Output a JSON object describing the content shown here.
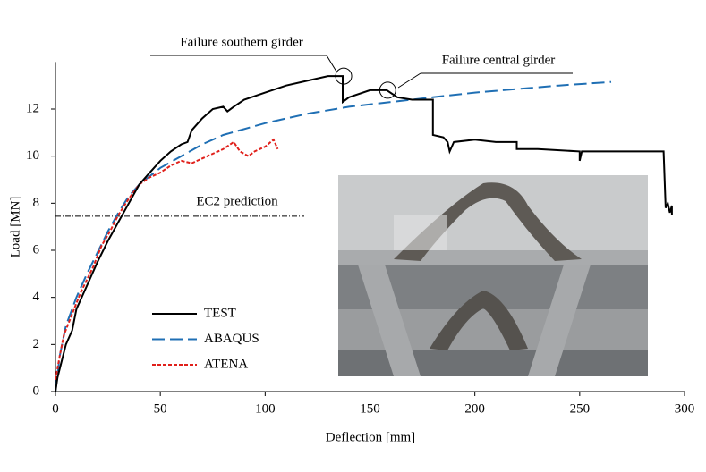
{
  "chart_data": {
    "type": "line",
    "x_label": "Deflection [mm]",
    "y_label": "Load [MN]",
    "xlim": [
      0,
      300
    ],
    "xticks": [
      0,
      50,
      100,
      150,
      200,
      250,
      300
    ],
    "ylim": [
      0,
      14
    ],
    "yticks": [
      0,
      2,
      4,
      6,
      8,
      10,
      12
    ],
    "legend": "lower left",
    "series": [
      {
        "name": "TEST",
        "color": "#000000",
        "style": "solid",
        "x": [
          0,
          1,
          3,
          5,
          8,
          10,
          15,
          20,
          25,
          30,
          35,
          40,
          45,
          50,
          55,
          60,
          63,
          65,
          70,
          75,
          80,
          82,
          85,
          90,
          100,
          110,
          120,
          130,
          137,
          137,
          140,
          150,
          158,
          163,
          170,
          180,
          180,
          185,
          187,
          188,
          190,
          200,
          210,
          220,
          220,
          230,
          250,
          250,
          251,
          260,
          290,
          291,
          292,
          293,
          294,
          294
        ],
        "values": [
          0,
          0.6,
          1.3,
          2,
          2.6,
          3.5,
          4.5,
          5.5,
          6.4,
          7.2,
          8,
          8.8,
          9.3,
          9.8,
          10.2,
          10.5,
          10.6,
          11.1,
          11.6,
          12,
          12.1,
          11.9,
          12.1,
          12.4,
          12.7,
          13,
          13.2,
          13.4,
          13.4,
          12.3,
          12.5,
          12.8,
          12.8,
          12.5,
          12.4,
          12.4,
          10.9,
          10.8,
          10.6,
          10.2,
          10.6,
          10.7,
          10.6,
          10.6,
          10.3,
          10.3,
          10.2,
          9.8,
          10.2,
          10.2,
          10.2,
          7.8,
          8,
          7.6,
          7.9,
          7.5
        ]
      },
      {
        "name": "ABAQUS",
        "color": "#1f6fb4",
        "style": "dashed",
        "x": [
          0,
          2,
          5,
          10,
          15,
          20,
          25,
          30,
          35,
          40,
          50,
          60,
          70,
          80,
          100,
          120,
          140,
          160,
          180,
          200,
          220,
          240,
          265
        ],
        "values": [
          0,
          1.5,
          2.8,
          4,
          5,
          5.9,
          6.8,
          7.6,
          8.3,
          8.8,
          9.5,
          10,
          10.5,
          10.9,
          11.4,
          11.8,
          12.1,
          12.3,
          12.5,
          12.7,
          12.85,
          13,
          13.15
        ]
      },
      {
        "name": "ATENA",
        "color": "#e0201b",
        "style": "dotted",
        "x": [
          0,
          2,
          4,
          8,
          12,
          18,
          22,
          26,
          30,
          35,
          40,
          45,
          50,
          55,
          60,
          65,
          70,
          75,
          80,
          85,
          88,
          92,
          95,
          100,
          104,
          106
        ],
        "values": [
          0.5,
          1.5,
          2.4,
          3.3,
          4.2,
          5.3,
          6.2,
          6.8,
          7.5,
          8.2,
          8.8,
          9.1,
          9.3,
          9.6,
          9.8,
          9.7,
          9.9,
          10.1,
          10.3,
          10.6,
          10.2,
          10,
          10.2,
          10.4,
          10.7,
          10.3
        ]
      }
    ],
    "reference_line": {
      "label": "EC2 prediction",
      "value": 7.45
    },
    "annotations": [
      {
        "text": "Failure southern girder",
        "x": 137,
        "y": 13.4
      },
      {
        "text": "Failure central girder",
        "x": 158,
        "y": 12.8
      }
    ]
  }
}
